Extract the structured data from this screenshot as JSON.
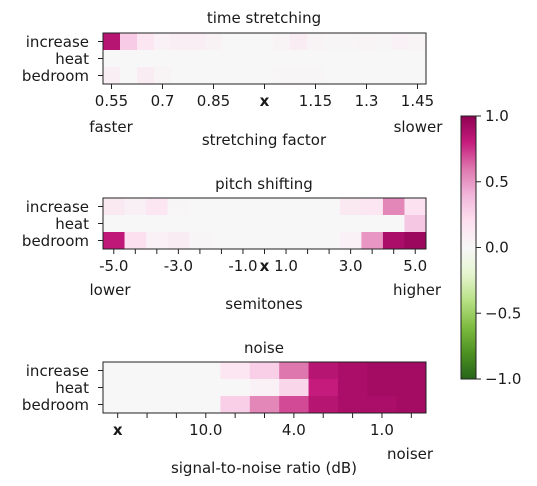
{
  "colorbar": {
    "min": -1.0,
    "max": 1.0,
    "ticks": [
      "1.0",
      "0.5",
      "0.0",
      "−0.5",
      "−1.0"
    ],
    "tick_values": [
      1.0,
      0.5,
      0.0,
      -0.5,
      -1.0
    ],
    "colormap": "PiYG",
    "colors": {
      "neg": "#276419",
      "zero": "#f7f7f7",
      "pos": "#8e0152"
    }
  },
  "chart_data": [
    {
      "type": "heatmap",
      "title": "time stretching",
      "xlabel": "stretching factor",
      "rows": [
        "increase",
        "heat",
        "bedroom"
      ],
      "tick_labels": [
        "0.55",
        "0.7",
        "0.85",
        "x",
        "1.15",
        "1.3",
        "1.45"
      ],
      "tick_cols": [
        0,
        3,
        6,
        9,
        12,
        15,
        18
      ],
      "bold_tick": "x",
      "end_labels": {
        "left": "faster",
        "right": "slower"
      },
      "ncols": 19,
      "values": [
        [
          0.85,
          0.3,
          0.15,
          0.05,
          0.08,
          0.08,
          0.04,
          0.0,
          0.0,
          0.0,
          0.03,
          0.1,
          0.03,
          0.02,
          0.02,
          0.03,
          0.02,
          0.05,
          0.03
        ],
        [
          0.0,
          0.0,
          0.0,
          0.0,
          0.0,
          0.0,
          0.0,
          0.0,
          0.0,
          0.0,
          0.0,
          0.0,
          0.0,
          0.0,
          0.0,
          0.0,
          0.0,
          0.0,
          0.0
        ],
        [
          0.08,
          0.0,
          0.1,
          0.03,
          0.0,
          0.0,
          0.0,
          0.0,
          0.0,
          0.0,
          0.02,
          0.02,
          0.02,
          0.0,
          0.0,
          0.0,
          0.0,
          0.0,
          0.0
        ]
      ]
    },
    {
      "type": "heatmap",
      "title": "pitch shifting",
      "xlabel": "semitones",
      "rows": [
        "increase",
        "heat",
        "bedroom"
      ],
      "tick_labels": [
        "-5.0",
        "-3.0",
        "-1.0",
        "x",
        "1.0",
        "3.0",
        "5.0"
      ],
      "tick_cols": [
        0,
        3,
        6,
        7,
        8,
        11,
        14
      ],
      "minor_tick_cols": [
        1,
        2,
        4,
        5,
        9,
        10,
        12,
        13
      ],
      "bold_tick": "x",
      "end_labels": {
        "left": "lower",
        "right": "higher"
      },
      "ncols": 15,
      "values": [
        [
          0.12,
          0.06,
          0.15,
          0.02,
          0.0,
          0.0,
          0.0,
          0.0,
          0.0,
          0.0,
          0.0,
          0.12,
          0.15,
          0.55,
          0.18
        ],
        [
          0.0,
          0.0,
          0.0,
          0.0,
          0.0,
          0.0,
          0.0,
          0.0,
          0.0,
          0.0,
          0.0,
          0.0,
          0.0,
          0.0,
          0.32
        ],
        [
          0.82,
          0.2,
          0.05,
          0.1,
          0.02,
          0.0,
          0.0,
          0.0,
          0.0,
          0.0,
          0.0,
          0.05,
          0.5,
          0.9,
          0.95
        ]
      ]
    },
    {
      "type": "heatmap",
      "title": "noise",
      "xlabel": "signal-to-noise ratio (dB)",
      "rows": [
        "increase",
        "heat",
        "bedroom"
      ],
      "tick_labels": [
        "x",
        "10.0",
        "4.0",
        "1.0"
      ],
      "tick_cols": [
        0,
        3,
        6,
        9
      ],
      "minor_tick_cols": [
        1,
        2,
        4,
        5,
        7,
        8,
        10
      ],
      "bold_tick": "x",
      "end_labels": {
        "left": "",
        "right": "noiser"
      },
      "ncols": 11,
      "values": [
        [
          0.0,
          0.0,
          0.0,
          0.0,
          0.15,
          0.28,
          0.6,
          0.85,
          0.9,
          0.92,
          0.92
        ],
        [
          0.0,
          0.0,
          0.0,
          0.0,
          0.0,
          0.05,
          0.25,
          0.8,
          0.9,
          0.92,
          0.92
        ],
        [
          0.0,
          0.0,
          0.0,
          0.0,
          0.28,
          0.55,
          0.7,
          0.85,
          0.9,
          0.9,
          0.92
        ]
      ]
    }
  ]
}
